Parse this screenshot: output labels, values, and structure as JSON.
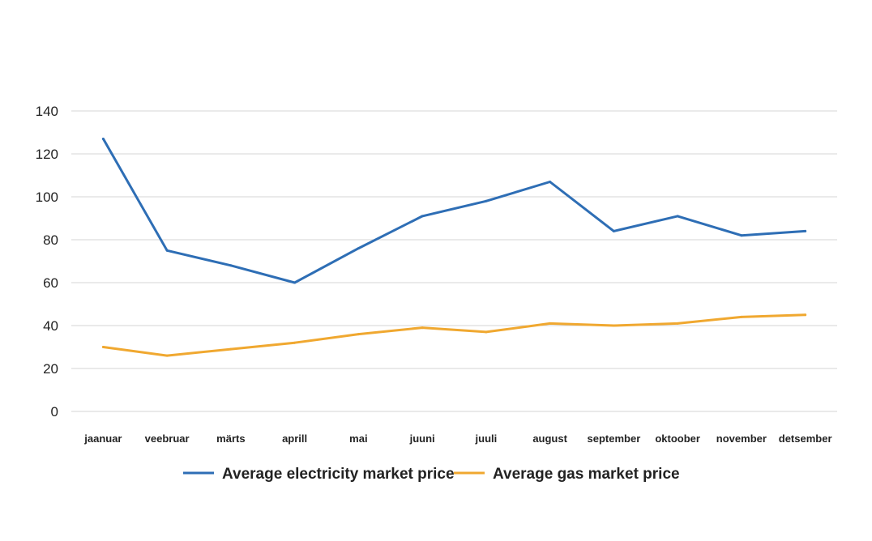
{
  "chart_data": {
    "type": "line",
    "categories": [
      "jaanuar",
      "veebruar",
      "märts",
      "aprill",
      "mai",
      "juuni",
      "juuli",
      "august",
      "september",
      "oktoober",
      "november",
      "detsember"
    ],
    "series": [
      {
        "name": "Average electricity market price",
        "color": "#2e6eb5",
        "values": [
          127,
          75,
          68,
          60,
          76,
          91,
          98,
          107,
          84,
          91,
          82,
          84
        ]
      },
      {
        "name": "Average gas market price",
        "color": "#f0a830",
        "values": [
          30,
          26,
          29,
          32,
          36,
          39,
          37,
          41,
          40,
          41,
          44,
          45
        ]
      }
    ],
    "ylim": [
      0,
      140
    ],
    "yticks": [
      0,
      20,
      40,
      60,
      80,
      100,
      120,
      140
    ],
    "grid": true,
    "legend_position": "bottom",
    "title": "",
    "xlabel": "",
    "ylabel": ""
  }
}
